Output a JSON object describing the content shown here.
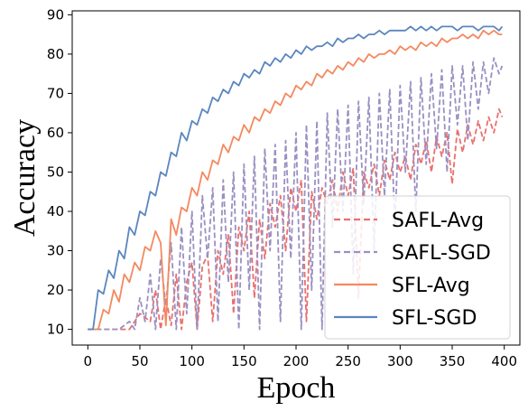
{
  "chart_data": {
    "type": "line",
    "title": "",
    "xlabel": "Epoch",
    "ylabel": "Accuracy",
    "xlim": [
      -15,
      415
    ],
    "ylim": [
      6,
      91
    ],
    "x_ticks": [
      0,
      50,
      100,
      150,
      200,
      250,
      300,
      350,
      400
    ],
    "y_ticks": [
      10,
      20,
      30,
      40,
      50,
      60,
      70,
      80,
      90
    ],
    "grid": false,
    "legend_position": "lower-right",
    "series": [
      {
        "name": "SAFL-Avg",
        "color": "#e8706e",
        "dash": "dashed",
        "points": [
          [
            0,
            10
          ],
          [
            20,
            10
          ],
          [
            40,
            10
          ],
          [
            50,
            14
          ],
          [
            60,
            12
          ],
          [
            65,
            20
          ],
          [
            70,
            10
          ],
          [
            75,
            18
          ],
          [
            80,
            11
          ],
          [
            85,
            24
          ],
          [
            90,
            10
          ],
          [
            95,
            22
          ],
          [
            100,
            27
          ],
          [
            105,
            10
          ],
          [
            110,
            26
          ],
          [
            115,
            29
          ],
          [
            120,
            12
          ],
          [
            125,
            30
          ],
          [
            130,
            24
          ],
          [
            135,
            34
          ],
          [
            140,
            14
          ],
          [
            145,
            36
          ],
          [
            150,
            30
          ],
          [
            155,
            40
          ],
          [
            160,
            18
          ],
          [
            165,
            38
          ],
          [
            170,
            28
          ],
          [
            175,
            42
          ],
          [
            180,
            36
          ],
          [
            185,
            44
          ],
          [
            190,
            30
          ],
          [
            195,
            46
          ],
          [
            200,
            40
          ],
          [
            205,
            48
          ],
          [
            210,
            12
          ],
          [
            215,
            45
          ],
          [
            220,
            38
          ],
          [
            225,
            46
          ],
          [
            230,
            42
          ],
          [
            235,
            48
          ],
          [
            240,
            40
          ],
          [
            245,
            50
          ],
          [
            250,
            44
          ],
          [
            255,
            51
          ],
          [
            260,
            18
          ],
          [
            265,
            50
          ],
          [
            270,
            46
          ],
          [
            275,
            52
          ],
          [
            280,
            44
          ],
          [
            285,
            53
          ],
          [
            290,
            48
          ],
          [
            295,
            55
          ],
          [
            300,
            50
          ],
          [
            305,
            54
          ],
          [
            310,
            48
          ],
          [
            315,
            57
          ],
          [
            320,
            52
          ],
          [
            325,
            58
          ],
          [
            330,
            50
          ],
          [
            335,
            59
          ],
          [
            340,
            54
          ],
          [
            345,
            60
          ],
          [
            350,
            47
          ],
          [
            355,
            61
          ],
          [
            360,
            55
          ],
          [
            365,
            62
          ],
          [
            370,
            57
          ],
          [
            375,
            63
          ],
          [
            380,
            58
          ],
          [
            385,
            64
          ],
          [
            390,
            60
          ],
          [
            395,
            66
          ],
          [
            398,
            64
          ]
        ]
      },
      {
        "name": "SAFL-SGD",
        "color": "#9b90c2",
        "dash": "dashed",
        "points": [
          [
            0,
            10
          ],
          [
            30,
            10
          ],
          [
            40,
            12
          ],
          [
            45,
            10
          ],
          [
            50,
            18
          ],
          [
            55,
            12
          ],
          [
            60,
            24
          ],
          [
            65,
            10
          ],
          [
            70,
            28
          ],
          [
            75,
            16
          ],
          [
            80,
            32
          ],
          [
            85,
            10
          ],
          [
            90,
            36
          ],
          [
            95,
            14
          ],
          [
            100,
            40
          ],
          [
            105,
            10
          ],
          [
            110,
            44
          ],
          [
            115,
            28
          ],
          [
            120,
            46
          ],
          [
            125,
            12
          ],
          [
            130,
            48
          ],
          [
            135,
            22
          ],
          [
            140,
            50
          ],
          [
            145,
            10
          ],
          [
            150,
            52
          ],
          [
            155,
            20
          ],
          [
            160,
            54
          ],
          [
            165,
            10
          ],
          [
            170,
            56
          ],
          [
            175,
            30
          ],
          [
            180,
            57
          ],
          [
            185,
            12
          ],
          [
            190,
            58
          ],
          [
            195,
            28
          ],
          [
            200,
            60
          ],
          [
            205,
            10
          ],
          [
            210,
            62
          ],
          [
            215,
            20
          ],
          [
            220,
            63
          ],
          [
            225,
            10
          ],
          [
            230,
            65
          ],
          [
            235,
            36
          ],
          [
            240,
            66
          ],
          [
            245,
            40
          ],
          [
            250,
            67
          ],
          [
            255,
            24
          ],
          [
            260,
            68
          ],
          [
            265,
            42
          ],
          [
            270,
            69
          ],
          [
            275,
            30
          ],
          [
            280,
            70
          ],
          [
            285,
            44
          ],
          [
            290,
            71
          ],
          [
            295,
            36
          ],
          [
            300,
            72
          ],
          [
            305,
            50
          ],
          [
            310,
            73
          ],
          [
            315,
            40
          ],
          [
            320,
            74
          ],
          [
            325,
            52
          ],
          [
            330,
            75
          ],
          [
            335,
            56
          ],
          [
            340,
            76
          ],
          [
            345,
            50
          ],
          [
            350,
            77
          ],
          [
            355,
            62
          ],
          [
            360,
            77
          ],
          [
            365,
            58
          ],
          [
            370,
            78
          ],
          [
            375,
            66
          ],
          [
            380,
            78
          ],
          [
            385,
            70
          ],
          [
            390,
            79
          ],
          [
            395,
            75
          ],
          [
            398,
            77
          ]
        ]
      },
      {
        "name": "SFL-Avg",
        "color": "#f4895f",
        "dash": "solid",
        "points": [
          [
            0,
            10
          ],
          [
            5,
            10
          ],
          [
            10,
            10
          ],
          [
            15,
            15
          ],
          [
            20,
            14
          ],
          [
            25,
            20
          ],
          [
            30,
            17
          ],
          [
            35,
            24
          ],
          [
            40,
            22
          ],
          [
            45,
            27
          ],
          [
            50,
            25
          ],
          [
            55,
            31
          ],
          [
            60,
            30
          ],
          [
            65,
            35
          ],
          [
            70,
            32
          ],
          [
            75,
            11
          ],
          [
            80,
            38
          ],
          [
            85,
            34
          ],
          [
            90,
            41
          ],
          [
            95,
            40
          ],
          [
            100,
            46
          ],
          [
            105,
            44
          ],
          [
            110,
            50
          ],
          [
            115,
            48
          ],
          [
            120,
            53
          ],
          [
            125,
            52
          ],
          [
            130,
            57
          ],
          [
            135,
            55
          ],
          [
            140,
            59
          ],
          [
            145,
            58
          ],
          [
            150,
            62
          ],
          [
            155,
            60
          ],
          [
            160,
            64
          ],
          [
            165,
            63
          ],
          [
            170,
            66
          ],
          [
            175,
            65
          ],
          [
            180,
            68
          ],
          [
            185,
            67
          ],
          [
            190,
            70
          ],
          [
            195,
            69
          ],
          [
            200,
            72
          ],
          [
            205,
            71
          ],
          [
            210,
            73
          ],
          [
            215,
            72
          ],
          [
            220,
            75
          ],
          [
            225,
            74
          ],
          [
            230,
            76
          ],
          [
            235,
            75
          ],
          [
            240,
            77
          ],
          [
            245,
            76
          ],
          [
            250,
            78
          ],
          [
            255,
            77
          ],
          [
            260,
            79
          ],
          [
            265,
            78
          ],
          [
            270,
            80
          ],
          [
            275,
            79
          ],
          [
            280,
            80
          ],
          [
            285,
            80
          ],
          [
            290,
            81
          ],
          [
            295,
            80
          ],
          [
            300,
            82
          ],
          [
            305,
            81
          ],
          [
            310,
            82
          ],
          [
            315,
            81
          ],
          [
            320,
            83
          ],
          [
            325,
            82
          ],
          [
            330,
            83
          ],
          [
            335,
            82
          ],
          [
            340,
            84
          ],
          [
            345,
            83
          ],
          [
            350,
            84
          ],
          [
            355,
            84
          ],
          [
            360,
            85
          ],
          [
            365,
            84
          ],
          [
            370,
            85
          ],
          [
            375,
            84
          ],
          [
            380,
            86
          ],
          [
            385,
            85
          ],
          [
            390,
            86
          ],
          [
            395,
            85
          ],
          [
            398,
            85
          ]
        ]
      },
      {
        "name": "SFL-SGD",
        "color": "#5b86bf",
        "dash": "solid",
        "points": [
          [
            0,
            10
          ],
          [
            5,
            10
          ],
          [
            10,
            20
          ],
          [
            15,
            19
          ],
          [
            20,
            25
          ],
          [
            25,
            23
          ],
          [
            30,
            30
          ],
          [
            35,
            28
          ],
          [
            40,
            36
          ],
          [
            45,
            34
          ],
          [
            50,
            40
          ],
          [
            55,
            39
          ],
          [
            60,
            45
          ],
          [
            65,
            44
          ],
          [
            70,
            50
          ],
          [
            75,
            49
          ],
          [
            80,
            55
          ],
          [
            85,
            54
          ],
          [
            90,
            60
          ],
          [
            95,
            58
          ],
          [
            100,
            63
          ],
          [
            105,
            62
          ],
          [
            110,
            66
          ],
          [
            115,
            65
          ],
          [
            120,
            69
          ],
          [
            125,
            68
          ],
          [
            130,
            71
          ],
          [
            135,
            70
          ],
          [
            140,
            73
          ],
          [
            145,
            72
          ],
          [
            150,
            75
          ],
          [
            155,
            74
          ],
          [
            160,
            76
          ],
          [
            165,
            75
          ],
          [
            170,
            78
          ],
          [
            175,
            77
          ],
          [
            180,
            79
          ],
          [
            185,
            78
          ],
          [
            190,
            80
          ],
          [
            195,
            79
          ],
          [
            200,
            81
          ],
          [
            205,
            80
          ],
          [
            210,
            82
          ],
          [
            215,
            81
          ],
          [
            220,
            82
          ],
          [
            225,
            82
          ],
          [
            230,
            83
          ],
          [
            235,
            82
          ],
          [
            240,
            84
          ],
          [
            245,
            83
          ],
          [
            250,
            84
          ],
          [
            255,
            84
          ],
          [
            260,
            85
          ],
          [
            265,
            84
          ],
          [
            270,
            85
          ],
          [
            275,
            85
          ],
          [
            280,
            86
          ],
          [
            285,
            85
          ],
          [
            290,
            86
          ],
          [
            295,
            86
          ],
          [
            300,
            86
          ],
          [
            305,
            86
          ],
          [
            310,
            87
          ],
          [
            315,
            86
          ],
          [
            320,
            87
          ],
          [
            325,
            86
          ],
          [
            330,
            87
          ],
          [
            335,
            86
          ],
          [
            340,
            87
          ],
          [
            345,
            87
          ],
          [
            350,
            87
          ],
          [
            355,
            86
          ],
          [
            360,
            87
          ],
          [
            365,
            87
          ],
          [
            370,
            87
          ],
          [
            375,
            86
          ],
          [
            380,
            87
          ],
          [
            385,
            87
          ],
          [
            390,
            87
          ],
          [
            395,
            86
          ],
          [
            398,
            87
          ]
        ]
      }
    ]
  }
}
